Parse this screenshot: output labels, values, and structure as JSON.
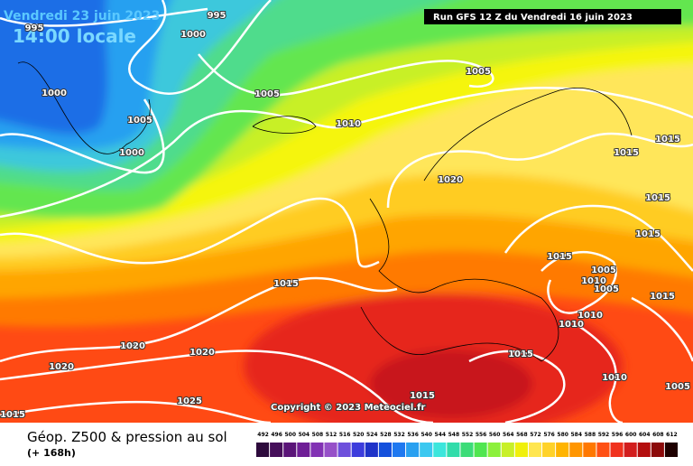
{
  "header": {
    "date": "Vendredi 23 juin 2023",
    "time": "14:00 locale",
    "run": "Run GFS 12 Z du Vendredi 16 juin 2023"
  },
  "copyright": "Copyright © 2023 Meteociel.fr",
  "footer": {
    "title": "Géop. Z500 & pression au sol",
    "lead": "(+ 168h)"
  },
  "isobar_labels": [
    995,
    1000,
    995,
    1000,
    1005,
    1000,
    1005,
    1010,
    1005,
    1015,
    1015,
    1020,
    1015,
    1015,
    1015,
    1005,
    1010,
    1005,
    1015,
    1015,
    1010,
    1010,
    1020,
    1020,
    1020,
    1015,
    1010,
    1005,
    1025,
    1015,
    1015
  ],
  "legend": {
    "values": [
      492,
      496,
      500,
      504,
      508,
      512,
      516,
      520,
      524,
      528,
      532,
      536,
      540,
      544,
      548,
      552,
      556,
      560,
      564,
      568,
      572,
      576,
      580,
      584,
      588,
      592,
      596,
      600,
      604,
      608,
      612
    ],
    "colors": [
      "#2d0a3c",
      "#460f5a",
      "#5a1478",
      "#6e1e96",
      "#8232b4",
      "#9650c8",
      "#6e50dc",
      "#3c3cdc",
      "#1e32c8",
      "#1450dc",
      "#1e78f0",
      "#28a0f0",
      "#3cc8f0",
      "#3ce6dc",
      "#32dcaa",
      "#3cdc78",
      "#50e650",
      "#8cf03c",
      "#c8f028",
      "#f0f00a",
      "#ffe650",
      "#ffd228",
      "#ffb400",
      "#ff9600",
      "#ff7800",
      "#ff5014",
      "#f0321e",
      "#d21e1e",
      "#b40f0f",
      "#8c0a0a",
      "#1e0000"
    ]
  }
}
